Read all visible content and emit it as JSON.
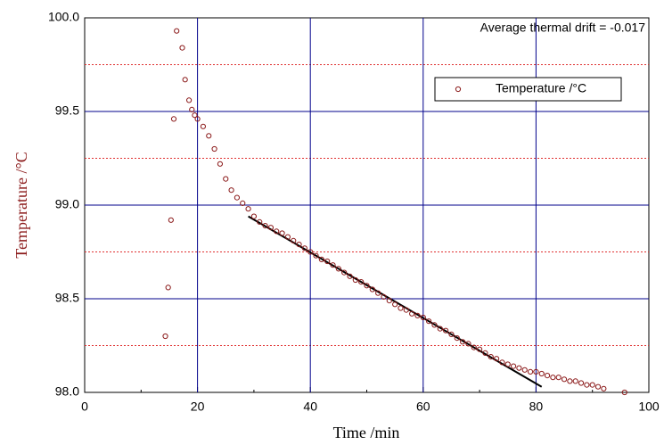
{
  "chart_data": {
    "type": "scatter",
    "x_label": "Time /min",
    "y_label": "Temperature /°C",
    "annotation": "Average thermal drift = -0.017",
    "xlim": [
      0,
      100
    ],
    "xticks": [
      0,
      20,
      40,
      60,
      80,
      100
    ],
    "xminorticks": [
      10,
      30,
      50,
      70,
      90
    ],
    "ylim": [
      98,
      100
    ],
    "yticks": [
      {
        "value": 98,
        "label": "98.0"
      },
      {
        "value": 98.5,
        "label": "98.5"
      },
      {
        "value": 99,
        "label": "99.0"
      },
      {
        "value": 99.5,
        "label": "99.5"
      },
      {
        "value": 100,
        "label": "100.0"
      }
    ],
    "yminorgrid": [
      98.25,
      98.75,
      99.25,
      99.75
    ],
    "grid": true,
    "legend": "upper right",
    "series": [
      {
        "name": "Temperature /°C",
        "color": "#8b1a1a",
        "x": [
          14.3,
          14.8,
          15.3,
          15.8,
          16.3,
          17.3,
          17.8,
          18.5,
          19,
          19.5,
          20,
          21,
          22,
          23,
          24,
          25,
          26,
          27,
          28,
          29,
          30,
          31,
          32,
          33,
          34,
          35,
          36,
          37,
          38,
          39,
          40,
          41,
          42,
          43,
          44,
          45,
          46,
          47,
          48,
          49,
          50,
          51,
          52,
          53,
          54,
          55,
          56,
          57,
          58,
          59,
          60,
          61,
          62,
          63,
          64,
          65,
          66,
          67,
          68,
          69,
          70,
          71,
          72,
          73,
          74,
          75,
          76,
          77,
          78,
          79,
          80,
          81,
          82,
          83,
          84,
          85,
          86,
          87,
          88,
          89,
          90,
          91,
          92,
          95.7
        ],
        "values": [
          98.3,
          98.56,
          98.92,
          99.46,
          99.93,
          99.84,
          99.67,
          99.56,
          99.51,
          99.48,
          99.46,
          99.42,
          99.37,
          99.3,
          99.22,
          99.14,
          99.08,
          99.04,
          99.01,
          98.98,
          98.94,
          98.91,
          98.89,
          98.88,
          98.86,
          98.85,
          98.83,
          98.81,
          98.79,
          98.77,
          98.75,
          98.73,
          98.71,
          98.7,
          98.68,
          98.66,
          98.64,
          98.62,
          98.6,
          98.59,
          98.57,
          98.55,
          98.53,
          98.51,
          98.49,
          98.47,
          98.45,
          98.44,
          98.42,
          98.41,
          98.4,
          98.38,
          98.36,
          98.34,
          98.33,
          98.31,
          98.29,
          98.27,
          98.26,
          98.24,
          98.23,
          98.21,
          98.19,
          98.18,
          98.16,
          98.15,
          98.14,
          98.13,
          98.12,
          98.11,
          98.11,
          98.1,
          98.09,
          98.08,
          98.08,
          98.07,
          98.06,
          98.06,
          98.05,
          98.04,
          98.04,
          98.03,
          98.02,
          98.0
        ]
      }
    ],
    "fit_line": {
      "color": "#000000",
      "x": [
        29,
        81
      ],
      "values": [
        98.94,
        98.03
      ]
    }
  }
}
